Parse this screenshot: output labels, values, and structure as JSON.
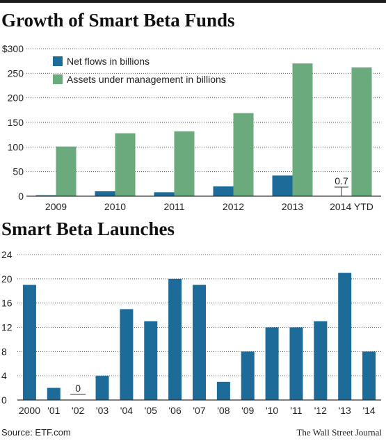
{
  "chart_data": [
    {
      "type": "bar",
      "title": "Growth of Smart Beta Funds",
      "categories": [
        "2009",
        "2010",
        "2011",
        "2012",
        "2013",
        "2014 YTD"
      ],
      "series": [
        {
          "name": "Net flows in billions",
          "values": [
            2,
            10,
            8,
            20,
            42,
            0.7
          ],
          "color": "#1d6b99"
        },
        {
          "name": "Assets under management in billions",
          "values": [
            101,
            128,
            132,
            169,
            270,
            262
          ],
          "color": "#6aaa7d"
        }
      ],
      "yticks": [
        "$300",
        "250",
        "200",
        "150",
        "100",
        "50",
        "0"
      ],
      "ylim": [
        0,
        300
      ],
      "annotation": {
        "text": "0.7",
        "category": "2014 YTD"
      },
      "grid": true,
      "legend": "top-left"
    },
    {
      "type": "bar",
      "title": "Smart Beta Launches",
      "categories": [
        "2000",
        "'01",
        "'02",
        "'03",
        "'04",
        "'05",
        "'06",
        "'07",
        "'08",
        "'09",
        "'10",
        "'11",
        "'12",
        "'13",
        "'14"
      ],
      "values": [
        19,
        2,
        0,
        4,
        15,
        13,
        20,
        19,
        3,
        8,
        12,
        12,
        13,
        21,
        8
      ],
      "color": "#1d6b99",
      "yticks": [
        "24",
        "20",
        "16",
        "12",
        "8",
        "4",
        "0"
      ],
      "ylim": [
        0,
        24
      ],
      "annotation": {
        "text": "0",
        "category": "'02"
      },
      "grid": true
    }
  ],
  "footer": {
    "source": "Source: ETF.com",
    "credit": "The Wall Street Journal"
  }
}
